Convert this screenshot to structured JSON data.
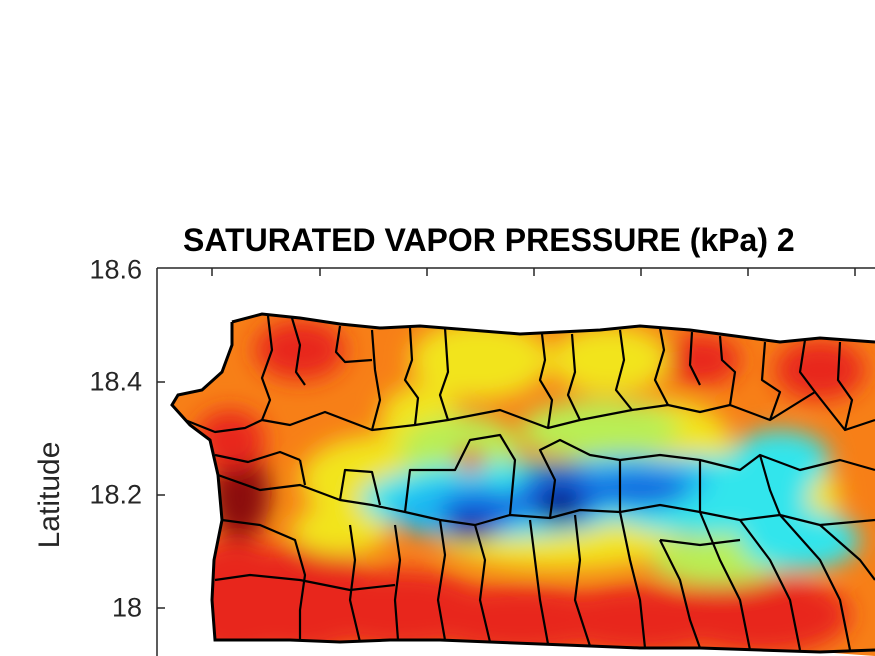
{
  "title": "SATURATED VAPOR PRESSURE (kPa) 2",
  "ylabel": "Latitude",
  "yticks": [
    "18.6",
    "18.4",
    "18.2",
    "18"
  ],
  "colormap": "jet",
  "colors": {
    "dark_red": "#8b0a0a",
    "red": "#e8261a",
    "orange": "#f77f17",
    "yellow": "#f2e41f",
    "light_green": "#b9ee55",
    "cyan": "#33e5ec",
    "light_blue": "#1fb7f2",
    "blue": "#1466e0",
    "dark_blue": "#0a1f8c",
    "border": "#000000"
  }
}
